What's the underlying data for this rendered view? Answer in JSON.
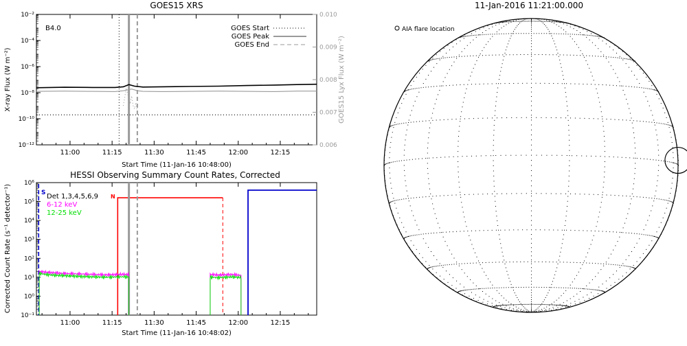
{
  "chart_data": [
    {
      "id": "goes",
      "type": "line",
      "title": "GOES15 XRS",
      "xlabel": "Start Time (11-Jan-16 10:48:00)",
      "ylabel": "X-ray Flux (W m⁻²)",
      "ylabel_right": "GOES15 Lyx Flux (W m⁻²)",
      "x_unit": "minutes after 10:48:00",
      "xlim": [
        0,
        100
      ],
      "x_ticks": [
        12,
        27,
        42,
        57,
        72,
        87
      ],
      "x_tick_labels": [
        "11:00",
        "11:15",
        "11:30",
        "11:45",
        "12:00",
        "12:15"
      ],
      "y_scale": "log",
      "ylim_exp": [
        -12,
        -2
      ],
      "y_ticks_exp": [
        -12,
        -10,
        -8,
        -6,
        -4,
        -2
      ],
      "y_tick_labels": [
        "10⁻¹²",
        "10⁻¹⁰",
        "10⁻⁸",
        "10⁻⁶",
        "10⁻⁴",
        "10⁻²"
      ],
      "y2lim": [
        0.006,
        0.01
      ],
      "y2_ticks": [
        0.006,
        0.007,
        0.008,
        0.009,
        0.01
      ],
      "y2_tick_labels": [
        "0.006",
        "0.007",
        "0.008",
        "0.009",
        "0.010"
      ],
      "annotation": "B4.0",
      "legend": [
        {
          "label": "GOES Start",
          "style": "dotted"
        },
        {
          "label": "GOES Peak",
          "style": "solid"
        },
        {
          "label": "GOES End",
          "style": "dashed"
        }
      ],
      "legend_position": "top-right",
      "grid": false,
      "series": [
        {
          "axis": "left",
          "color": "#000000",
          "x": [
            0,
            10,
            20,
            28,
            31,
            33,
            35,
            38,
            45,
            55,
            65,
            75,
            85,
            93,
            100
          ],
          "y_log10": [
            -7.62,
            -7.58,
            -7.6,
            -7.6,
            -7.55,
            -7.38,
            -7.5,
            -7.57,
            -7.55,
            -7.52,
            -7.5,
            -7.45,
            -7.42,
            -7.38,
            -7.35
          ]
        },
        {
          "axis": "left",
          "color": "#9a9a9a",
          "x": [
            0,
            10,
            20,
            28,
            31,
            34,
            36,
            38,
            45,
            55,
            65,
            75,
            85,
            93,
            100
          ],
          "y_log10": [
            -7.9,
            -7.88,
            -7.9,
            -7.92,
            -7.85,
            -7.72,
            -7.85,
            -7.9,
            -7.92,
            -7.9,
            -7.88,
            -7.9,
            -7.92,
            -7.88,
            -7.88
          ]
        },
        {
          "axis": "left",
          "color": "#000000",
          "x": [
            0,
            100
          ],
          "y_log10": [
            -9.7,
            -9.7
          ],
          "style": "dotted"
        },
        {
          "axis": "right",
          "color": "#9a9a9a",
          "style": "dotted",
          "x": [
            31,
            31.5,
            32,
            32.5,
            33,
            33.5,
            34,
            34.5,
            35,
            35.5,
            36
          ],
          "y": [
            0.0072,
            0.00745,
            0.0077,
            0.0076,
            0.0074,
            0.0073,
            0.0075,
            0.0072,
            0.0071,
            0.0073,
            0.007
          ]
        }
      ],
      "markers": {
        "start": 29.5,
        "peak": 33,
        "end": 36
      }
    },
    {
      "id": "hessi",
      "type": "line",
      "title": "HESSI Observing Summary Count Rates, Corrected",
      "xlabel": "Start Time (11-Jan-16 10:48:02)",
      "ylabel": "Corrected Count Rate (s⁻¹ detector⁻¹)",
      "x_unit": "minutes after 10:48:02",
      "xlim": [
        0,
        100
      ],
      "x_ticks": [
        12,
        27,
        42,
        57,
        72,
        87
      ],
      "x_tick_labels": [
        "11:00",
        "11:15",
        "11:30",
        "11:45",
        "12:00",
        "12:15"
      ],
      "y_scale": "log",
      "ylim_exp": [
        -1,
        6
      ],
      "y_ticks_exp": [
        -1,
        0,
        1,
        2,
        3,
        4,
        5,
        6
      ],
      "y_tick_labels": [
        "10⁻¹",
        "10⁰",
        "10¹",
        "10²",
        "10³",
        "10⁴",
        "10⁵",
        "10⁶"
      ],
      "annotations": [
        "S",
        "N"
      ],
      "legend": [
        {
          "label": "Det 1,3,4,5,6,9",
          "color": "#000000"
        },
        {
          "label": "6-12 keV",
          "color": "#ff00ff"
        },
        {
          "label": "12-25 keV",
          "color": "#00dd00"
        }
      ],
      "legend_position": "top-left",
      "grid": false,
      "series": [
        {
          "name": "6-12 keV",
          "color": "#ff00ff",
          "segments": [
            {
              "x": [
                1,
                5,
                10,
                15,
                20,
                25,
                30,
                33
              ],
              "y_log10": [
                1.3,
                1.25,
                1.2,
                1.18,
                1.15,
                1.13,
                1.15,
                1.15
              ]
            },
            {
              "x": [
                62,
                65,
                70,
                73
              ],
              "y_log10": [
                1.15,
                1.12,
                1.15,
                1.1
              ]
            }
          ]
        },
        {
          "name": "12-25 keV",
          "color": "#00dd00",
          "segments": [
            {
              "x": [
                1,
                5,
                10,
                15,
                20,
                25,
                30,
                33
              ],
              "y_log10": [
                1.2,
                1.12,
                1.08,
                1.05,
                1.02,
                1.0,
                1.02,
                1.02
              ]
            },
            {
              "x": [
                62,
                65,
                70,
                73
              ],
              "y_log10": [
                1.0,
                0.98,
                1.02,
                0.98
              ]
            }
          ]
        }
      ],
      "flags": {
        "night_start": 29,
        "night_end": 66.5,
        "night_level_log10": 5.2,
        "saa_x": 0.8,
        "blue_start": 75.5,
        "blue_level_log10": 5.6
      },
      "markers": {
        "peak": 33,
        "end": 36
      }
    },
    {
      "id": "sun",
      "type": "diagram",
      "title": "11-Jan-2016 11:21:00.000",
      "legend": "AIA flare location",
      "flare_location": {
        "longitude_deg": 90,
        "latitude_deg": 2
      }
    }
  ]
}
